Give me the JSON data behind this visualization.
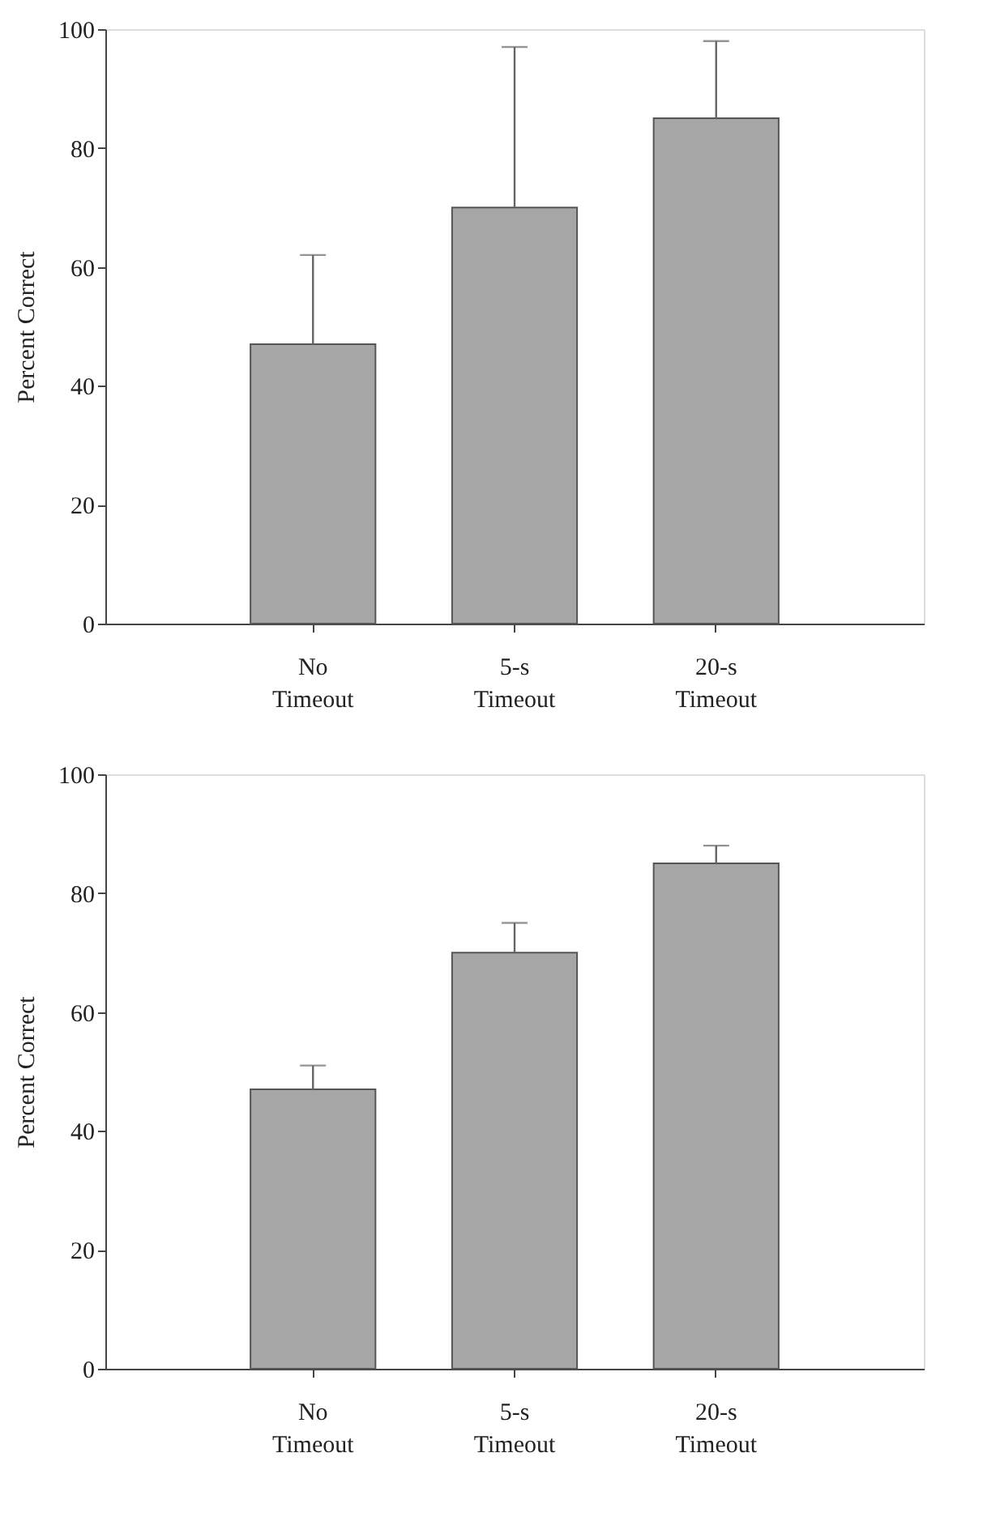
{
  "chart_data": [
    {
      "type": "bar",
      "ylabel": "Percent Correct",
      "categories": [
        "No Timeout",
        "5-s Timeout",
        "20-s Timeout"
      ],
      "values": [
        47,
        70,
        85
      ],
      "color": "#a6a6a6",
      "errors": [
        [
          47,
          62
        ],
        [
          70,
          97
        ],
        [
          85,
          98
        ]
      ],
      "ylim": [
        0,
        100
      ],
      "yticks": [
        0,
        20,
        40,
        60,
        80,
        100
      ],
      "grid": false
    },
    {
      "type": "bar",
      "ylabel": "Percent Correct",
      "categories": [
        "No Timeout",
        "5-s Timeout",
        "20-s Timeout"
      ],
      "values": [
        47,
        70,
        85
      ],
      "color": "#a6a6a6",
      "errors": [
        [
          47,
          51
        ],
        [
          70,
          75
        ],
        [
          85,
          88
        ]
      ],
      "ylim": [
        0,
        100
      ],
      "yticks": [
        0,
        20,
        40,
        60,
        80,
        100
      ],
      "grid": false
    }
  ]
}
